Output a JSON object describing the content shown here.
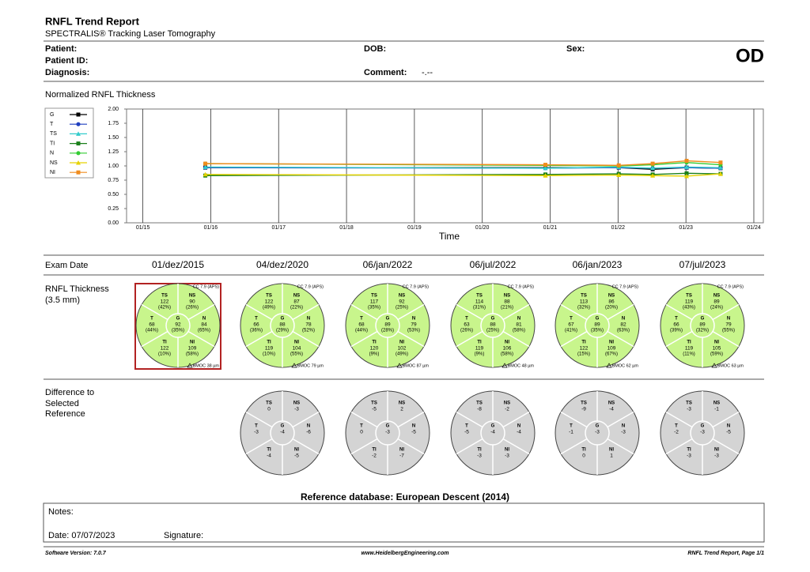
{
  "header": {
    "title": "RNFL Trend Report",
    "subtitle": "SPECTRALIS® Tracking Laser Tomography"
  },
  "patient": {
    "patient_label": "Patient:",
    "patient_id_label": "Patient ID:",
    "diagnosis_label": "Diagnosis:",
    "dob_label": "DOB:",
    "sex_label": "Sex:",
    "comment_label": "Comment:",
    "comment_value": "-.--",
    "eye": "OD"
  },
  "chart_data": {
    "type": "line",
    "title": "Normalized RNFL Thickness",
    "x_label": "Time",
    "x": [
      2015.92,
      2020.93,
      2022.01,
      2022.51,
      2023.01,
      2023.51
    ],
    "xlim": [
      2014.76,
      2024.14
    ],
    "xticks": [
      {
        "value": 2015,
        "label": "01/15"
      },
      {
        "value": 2016,
        "label": "01/16"
      },
      {
        "value": 2017,
        "label": "01/17"
      },
      {
        "value": 2018,
        "label": "01/18"
      },
      {
        "value": 2019,
        "label": "01/19"
      },
      {
        "value": 2020,
        "label": "01/20"
      },
      {
        "value": 2021,
        "label": "01/21"
      },
      {
        "value": 2022,
        "label": "01/22"
      },
      {
        "value": 2023,
        "label": "01/23"
      },
      {
        "value": 2024,
        "label": "01/24"
      }
    ],
    "ylim": [
      0,
      2
    ],
    "yticks": [
      {
        "value": 0,
        "label": "0.00"
      },
      {
        "value": 0.25,
        "label": "0.25"
      },
      {
        "value": 0.5,
        "label": "0.50"
      },
      {
        "value": 0.75,
        "label": "0.75"
      },
      {
        "value": 1,
        "label": "1.00"
      },
      {
        "value": 1.25,
        "label": "1.25"
      },
      {
        "value": 1.5,
        "label": "1.50"
      },
      {
        "value": 1.75,
        "label": "1.75"
      },
      {
        "value": 2,
        "label": "2.00"
      }
    ],
    "grid": true,
    "series": [
      {
        "name": "G",
        "color": "#000000",
        "marker": "square",
        "values": [
          0.97,
          0.97,
          0.97,
          0.94,
          0.97,
          0.96
        ]
      },
      {
        "name": "T",
        "color": "#1f3fbf",
        "marker": "circle",
        "values": [
          0.97,
          0.96,
          0.97,
          0.96,
          0.97,
          0.96
        ]
      },
      {
        "name": "TS",
        "color": "#33cccc",
        "marker": "triangle",
        "values": [
          0.98,
          0.96,
          0.98,
          0.96,
          0.98,
          0.97
        ]
      },
      {
        "name": "TI",
        "color": "#1a7f1a",
        "marker": "square",
        "values": [
          0.83,
          0.85,
          0.86,
          0.85,
          0.87,
          0.86
        ]
      },
      {
        "name": "N",
        "color": "#33cc33",
        "marker": "circle",
        "values": [
          1.04,
          1.01,
          1.0,
          1.02,
          1.06,
          1.02
        ]
      },
      {
        "name": "NS",
        "color": "#e6d200",
        "marker": "triangle",
        "values": [
          0.85,
          0.83,
          0.84,
          0.83,
          0.82,
          0.86
        ]
      },
      {
        "name": "NI",
        "color": "#f08c1e",
        "marker": "square",
        "values": [
          1.04,
          1.02,
          1.01,
          1.04,
          1.09,
          1.06
        ]
      }
    ]
  },
  "exams": {
    "date_label": "Exam Date",
    "thickness_label": "RNFL Thickness",
    "thickness_sub": "(3.5 mm)",
    "difference_label": [
      "Difference to",
      "Selected",
      "Reference"
    ],
    "selected": 0,
    "items": [
      {
        "date": "01/dez/2015",
        "cc": "CC 7.9 (APS)",
        "bmo": "BMOC 38 µm",
        "sectors": [
          {
            "label": "TS",
            "value": 122,
            "pct": "(42%)"
          },
          {
            "label": "NS",
            "value": 90,
            "pct": "(26%)"
          },
          {
            "label": "T",
            "value": 68,
            "pct": "(44%)"
          },
          {
            "label": "G",
            "value": 92,
            "pct": "(35%)"
          },
          {
            "label": "N",
            "value": 84,
            "pct": "(65%)"
          },
          {
            "label": "TI",
            "value": 122,
            "pct": "(10%)"
          },
          {
            "label": "NI",
            "value": 109,
            "pct": "(58%)"
          }
        ]
      },
      {
        "date": "04/dez/2020",
        "cc": "CC 7.9 (APS)",
        "bmo": "BMOC 79 µm",
        "sectors": [
          {
            "label": "TS",
            "value": 122,
            "pct": "(49%)"
          },
          {
            "label": "NS",
            "value": 87,
            "pct": "(22%)"
          },
          {
            "label": "T",
            "value": 66,
            "pct": "(36%)"
          },
          {
            "label": "G",
            "value": 88,
            "pct": "(29%)"
          },
          {
            "label": "N",
            "value": 78,
            "pct": "(52%)"
          },
          {
            "label": "TI",
            "value": 119,
            "pct": "(10%)"
          },
          {
            "label": "NI",
            "value": 104,
            "pct": "(55%)"
          }
        ]
      },
      {
        "date": "06/jan/2022",
        "cc": "CC 7.9 (APS)",
        "bmo": "BMOC 87 µm",
        "sectors": [
          {
            "label": "TS",
            "value": 117,
            "pct": "(35%)"
          },
          {
            "label": "NS",
            "value": 92,
            "pct": "(25%)"
          },
          {
            "label": "T",
            "value": 68,
            "pct": "(44%)"
          },
          {
            "label": "G",
            "value": 89,
            "pct": "(28%)"
          },
          {
            "label": "N",
            "value": 79,
            "pct": "(53%)"
          },
          {
            "label": "TI",
            "value": 120,
            "pct": "(9%)"
          },
          {
            "label": "NI",
            "value": 102,
            "pct": "(49%)"
          }
        ]
      },
      {
        "date": "06/jul/2022",
        "cc": "CC 7.9 (APS)",
        "bmo": "BMOC 48 µm",
        "sectors": [
          {
            "label": "TS",
            "value": 114,
            "pct": "(31%)"
          },
          {
            "label": "NS",
            "value": 88,
            "pct": "(21%)"
          },
          {
            "label": "T",
            "value": 63,
            "pct": "(26%)"
          },
          {
            "label": "G",
            "value": 88,
            "pct": "(25%)"
          },
          {
            "label": "N",
            "value": 81,
            "pct": "(58%)"
          },
          {
            "label": "TI",
            "value": 119,
            "pct": "(9%)"
          },
          {
            "label": "NI",
            "value": 106,
            "pct": "(58%)"
          }
        ]
      },
      {
        "date": "06/jan/2023",
        "cc": "CC 7.9 (APS)",
        "bmo": "BMOC 62 µm",
        "sectors": [
          {
            "label": "TS",
            "value": 113,
            "pct": "(32%)"
          },
          {
            "label": "NS",
            "value": 86,
            "pct": "(20%)"
          },
          {
            "label": "T",
            "value": 67,
            "pct": "(41%)"
          },
          {
            "label": "G",
            "value": 89,
            "pct": "(35%)"
          },
          {
            "label": "N",
            "value": 82,
            "pct": "(63%)"
          },
          {
            "label": "TI",
            "value": 122,
            "pct": "(15%)"
          },
          {
            "label": "NI",
            "value": 109,
            "pct": "(67%)"
          }
        ]
      },
      {
        "date": "07/jul/2023",
        "cc": "CC 7.9 (APS)",
        "bmo": "BMOC 63 µm",
        "sectors": [
          {
            "label": "TS",
            "value": 119,
            "pct": "(43%)"
          },
          {
            "label": "NS",
            "value": 89,
            "pct": "(24%)"
          },
          {
            "label": "T",
            "value": 66,
            "pct": "(39%)"
          },
          {
            "label": "G",
            "value": 89,
            "pct": "(32%)"
          },
          {
            "label": "N",
            "value": 79,
            "pct": "(55%)"
          },
          {
            "label": "TI",
            "value": 119,
            "pct": "(11%)"
          },
          {
            "label": "NI",
            "value": 105,
            "pct": "(59%)"
          }
        ]
      }
    ],
    "differences": [
      {
        "exam": 1,
        "sectors": [
          {
            "label": "TS",
            "value": 0
          },
          {
            "label": "NS",
            "value": -3
          },
          {
            "label": "T",
            "value": -3
          },
          {
            "label": "G",
            "value": -4
          },
          {
            "label": "N",
            "value": -6
          },
          {
            "label": "TI",
            "value": -4
          },
          {
            "label": "NI",
            "value": -5
          }
        ]
      },
      {
        "exam": 2,
        "sectors": [
          {
            "label": "TS",
            "value": -5
          },
          {
            "label": "NS",
            "value": 2
          },
          {
            "label": "T",
            "value": 0
          },
          {
            "label": "G",
            "value": -3
          },
          {
            "label": "N",
            "value": -5
          },
          {
            "label": "TI",
            "value": -2
          },
          {
            "label": "NI",
            "value": -7
          }
        ]
      },
      {
        "exam": 3,
        "sectors": [
          {
            "label": "TS",
            "value": -8
          },
          {
            "label": "NS",
            "value": -2
          },
          {
            "label": "T",
            "value": -5
          },
          {
            "label": "G",
            "value": -4
          },
          {
            "label": "N",
            "value": -4
          },
          {
            "label": "TI",
            "value": -3
          },
          {
            "label": "NI",
            "value": -3
          }
        ]
      },
      {
        "exam": 4,
        "sectors": [
          {
            "label": "TS",
            "value": -9
          },
          {
            "label": "NS",
            "value": -4
          },
          {
            "label": "T",
            "value": -1
          },
          {
            "label": "G",
            "value": -3
          },
          {
            "label": "N",
            "value": -3
          },
          {
            "label": "TI",
            "value": 0
          },
          {
            "label": "NI",
            "value": 1
          }
        ]
      },
      {
        "exam": 5,
        "sectors": [
          {
            "label": "TS",
            "value": -3
          },
          {
            "label": "NS",
            "value": -1
          },
          {
            "label": "T",
            "value": -2
          },
          {
            "label": "G",
            "value": -3
          },
          {
            "label": "N",
            "value": -5
          },
          {
            "label": "TI",
            "value": -3
          },
          {
            "label": "NI",
            "value": -3
          }
        ]
      }
    ]
  },
  "reference_database": "Reference database: European Descent (2014)",
  "notes": {
    "notes_label": "Notes:",
    "date": "Date: 07/07/2023",
    "signature_label": "Signature:"
  },
  "footer": {
    "software": "Software Version: 7.0.7",
    "website": "www.HeidelbergEngineering.com",
    "page": "RNFL Trend Report, Page 1/1"
  }
}
